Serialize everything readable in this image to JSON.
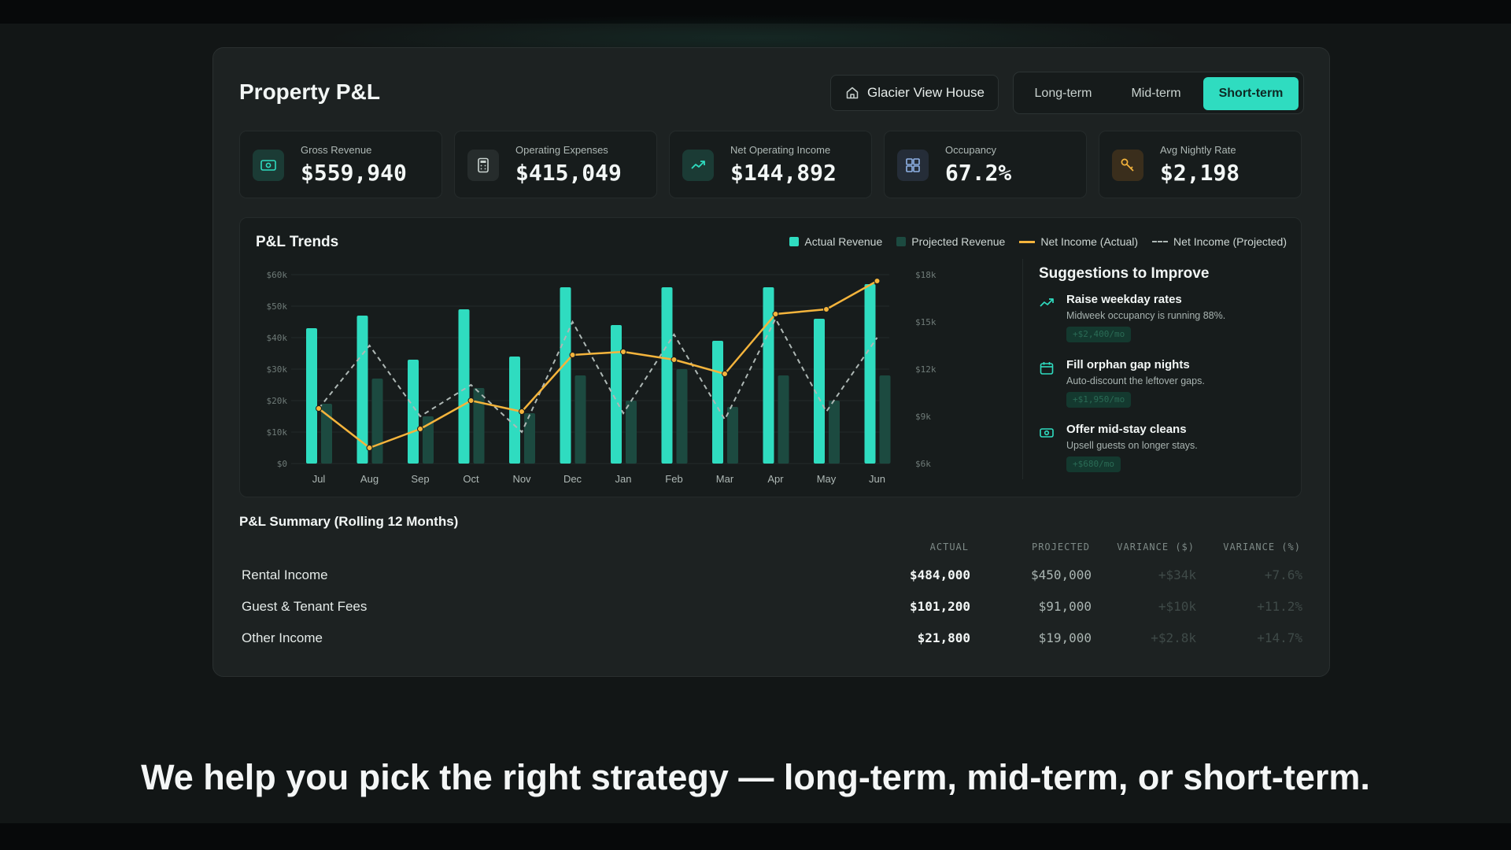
{
  "app": {
    "title": "Property P&L"
  },
  "property_selector": {
    "label": "Glacier View House",
    "icon": "home-icon"
  },
  "strategy_tabs": [
    {
      "label": "Long-term",
      "active": false
    },
    {
      "label": "Mid-term",
      "active": false
    },
    {
      "label": "Short-term",
      "active": true
    }
  ],
  "kpis": [
    {
      "label": "Gross Revenue",
      "value": "$559,940",
      "icon": "cash-icon"
    },
    {
      "label": "Operating Expenses",
      "value": "$415,049",
      "icon": "calculator-icon"
    },
    {
      "label": "Net Operating Income",
      "value": "$144,892",
      "icon": "trend-up-icon"
    },
    {
      "label": "Occupancy",
      "value": "67.2%",
      "icon": "grid-icon"
    },
    {
      "label": "Avg Nightly Rate",
      "value": "$2,198",
      "icon": "key-icon"
    }
  ],
  "trends": {
    "title": "P&L Trends",
    "legend": [
      "Actual Revenue",
      "Projected Revenue",
      "Net Income (Actual)",
      "Net Income (Projected)"
    ]
  },
  "chart_data": {
    "type": "bar",
    "categories": [
      "Jul",
      "Aug",
      "Sep",
      "Oct",
      "Nov",
      "Dec",
      "Jan",
      "Feb",
      "Mar",
      "Apr",
      "May",
      "Jun"
    ],
    "series": [
      {
        "name": "Actual Revenue",
        "type": "bar",
        "axis": "left",
        "values": [
          43000,
          47000,
          33000,
          49000,
          34000,
          56000,
          44000,
          56000,
          39000,
          56000,
          46000,
          57000
        ]
      },
      {
        "name": "Projected Revenue",
        "type": "bar",
        "axis": "left",
        "values": [
          19000,
          27000,
          15000,
          24000,
          16000,
          28000,
          20000,
          30000,
          18000,
          28000,
          20000,
          28000
        ]
      },
      {
        "name": "Net Income (Actual)",
        "type": "line",
        "axis": "right",
        "values": [
          9500,
          7000,
          8200,
          10000,
          9300,
          12900,
          13100,
          12600,
          11700,
          15500,
          15800,
          17600
        ]
      },
      {
        "name": "Net Income (Projected)",
        "type": "line",
        "axis": "right",
        "values": [
          9500,
          13500,
          9000,
          11000,
          8000,
          15000,
          9200,
          14200,
          8800,
          15200,
          9300,
          14000
        ]
      }
    ],
    "left_axis": {
      "ticks": [
        "$0",
        "$10k",
        "$20k",
        "$30k",
        "$40k",
        "$50k",
        "$60k"
      ],
      "range": [
        0,
        60000
      ]
    },
    "right_axis": {
      "ticks": [
        "$6k",
        "$9k",
        "$12k",
        "$15k",
        "$18k"
      ],
      "range": [
        6000,
        18000
      ]
    },
    "colors": {
      "actual_revenue": "#2fdcc0",
      "projected_revenue": "#1c4a40",
      "net_actual": "#f4b43c",
      "net_projected": "#aeb8b5"
    },
    "grid": true,
    "legend_position": "top-right"
  },
  "suggestions": {
    "title": "Suggestions to Improve",
    "items": [
      {
        "title": "Raise weekday rates",
        "desc": "Midweek occupancy is running 88%.",
        "badge": "+$2,400/mo",
        "icon": "trend-up-icon"
      },
      {
        "title": "Fill orphan gap nights",
        "desc": "Auto-discount the leftover gaps.",
        "badge": "+$1,950/mo",
        "icon": "calendar-icon"
      },
      {
        "title": "Offer mid-stay cleans",
        "desc": "Upsell guests on longer stays.",
        "badge": "+$680/mo",
        "icon": "cash-icon"
      }
    ]
  },
  "summary": {
    "title": "P&L Summary (Rolling 12 Months)",
    "columns": [
      "ACTUAL",
      "PROJECTED",
      "VARIANCE ($)",
      "VARIANCE (%)"
    ],
    "rows": [
      {
        "label": "Rental Income",
        "actual": "$484,000",
        "projected": "$450,000",
        "var_d": "+$34k",
        "var_p": "+7.6%"
      },
      {
        "label": "Guest & Tenant Fees",
        "actual": "$101,200",
        "projected": "$91,000",
        "var_d": "+$10k",
        "var_p": "+11.2%"
      },
      {
        "label": "Other Income",
        "actual": "$21,800",
        "projected": "$19,000",
        "var_d": "+$2.8k",
        "var_p": "+14.7%"
      }
    ]
  },
  "caption": "We help you pick the right strategy — long-term, mid-term, or short-term."
}
